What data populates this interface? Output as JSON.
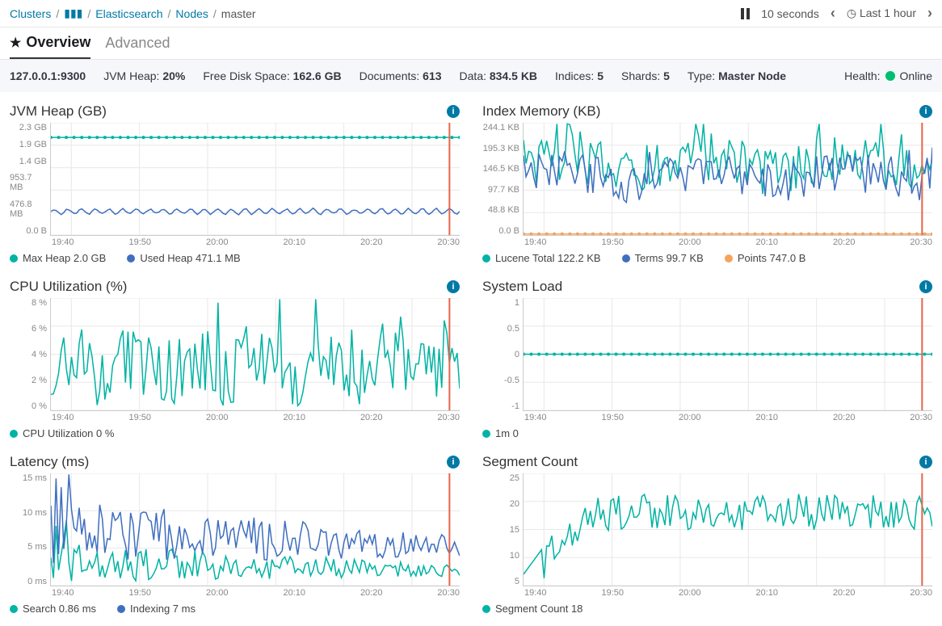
{
  "colors": {
    "teal": "#00b3a4",
    "blue": "#3185fc",
    "navy": "#3f6fbf",
    "orange": "#f5a35c",
    "markerRed": "#e7664c",
    "grid": "#e8e8e8",
    "health": "#00bf6f",
    "link": "#0079a5"
  },
  "breadcrumbs": [
    {
      "label": "Clusters",
      "link": true
    },
    {
      "label": "▮▮▮",
      "link": true
    },
    {
      "label": "Elasticsearch",
      "link": true
    },
    {
      "label": "Nodes",
      "link": true
    },
    {
      "label": "master",
      "link": false
    }
  ],
  "refresh": {
    "interval": "10 seconds",
    "range": "Last 1 hour"
  },
  "tabs": {
    "overview": "Overview",
    "advanced": "Advanced"
  },
  "node": {
    "ip": "127.0.0.1:9300",
    "heap_label": "JVM Heap:",
    "heap_val": "20%",
    "disk_label": "Free Disk Space:",
    "disk_val": "162.6 GB",
    "docs_label": "Documents:",
    "docs_val": "613",
    "data_label": "Data:",
    "data_val": "834.5 KB",
    "indices_label": "Indices:",
    "indices_val": "5",
    "shards_label": "Shards:",
    "shards_val": "5",
    "type_label": "Type:",
    "type_val": "Master Node",
    "health_label": "Health:",
    "health_val": "Online"
  },
  "xticks": [
    "19:40",
    "19:50",
    "20:00",
    "20:10",
    "20:20",
    "20:30"
  ],
  "charts": {
    "jvm": {
      "title": "JVM Heap (GB)",
      "yticks": [
        "2.3 GB",
        "1.9 GB",
        "1.4 GB",
        "953.7 MB",
        "476.8 MB",
        "0.0 B"
      ],
      "series": [
        {
          "name": "Max Heap 2.0 GB",
          "color": "teal",
          "type": "flat",
          "y": 0.87,
          "markers": true
        },
        {
          "name": "Used Heap 471.1 MB",
          "color": "navy",
          "type": "wave",
          "base": 0.21,
          "amp": 0.03,
          "freq": 60
        }
      ]
    },
    "index": {
      "title": "Index Memory (KB)",
      "yticks": [
        "244.1 KB",
        "195.3 KB",
        "146.5 KB",
        "97.7 KB",
        "48.8 KB",
        "0.0 B"
      ],
      "series": [
        {
          "name": "Lucene Total 122.2 KB",
          "color": "teal",
          "type": "spiky",
          "base": 0.55,
          "amp": 0.22,
          "freq": 18
        },
        {
          "name": "Terms 99.7 KB",
          "color": "navy",
          "type": "spiky",
          "base": 0.45,
          "amp": 0.18,
          "freq": 18
        },
        {
          "name": "Points 747.0 B",
          "color": "orange",
          "type": "flat",
          "y": 0.01,
          "markers": true
        }
      ]
    },
    "cpu": {
      "title": "CPU Utilization (%)",
      "yticks": [
        "8 %",
        "6 %",
        "4 %",
        "2 %",
        "0 %"
      ],
      "series": [
        {
          "name": "CPU Utilization 0 %",
          "color": "teal",
          "type": "spiky",
          "base": 0.28,
          "amp": 0.3,
          "freq": 40
        }
      ]
    },
    "load": {
      "title": "System Load",
      "yticks": [
        "1",
        "0.5",
        "0",
        "-0.5",
        "-1"
      ],
      "series": [
        {
          "name": "1m 0",
          "color": "teal",
          "type": "flat",
          "y": 0.5,
          "markers": true
        }
      ]
    },
    "latency": {
      "title": "Latency (ms)",
      "yticks": [
        "15 ms",
        "10 ms",
        "5 ms",
        "0 ms"
      ],
      "series": [
        {
          "name": "Search 0.86 ms",
          "color": "teal",
          "type": "decaywave",
          "base": 0.1,
          "amp": 0.18,
          "freq": 35
        },
        {
          "name": "Indexing 7 ms",
          "color": "navy",
          "type": "decaywave",
          "base": 0.3,
          "amp": 0.3,
          "freq": 35
        }
      ]
    },
    "segment": {
      "title": "Segment Count",
      "yticks": [
        "25",
        "20",
        "15",
        "10",
        "5"
      ],
      "series": [
        {
          "name": "Segment Count 18",
          "color": "teal",
          "type": "rampwave",
          "base": 0.62,
          "amp": 0.22,
          "freq": 25
        }
      ]
    }
  }
}
